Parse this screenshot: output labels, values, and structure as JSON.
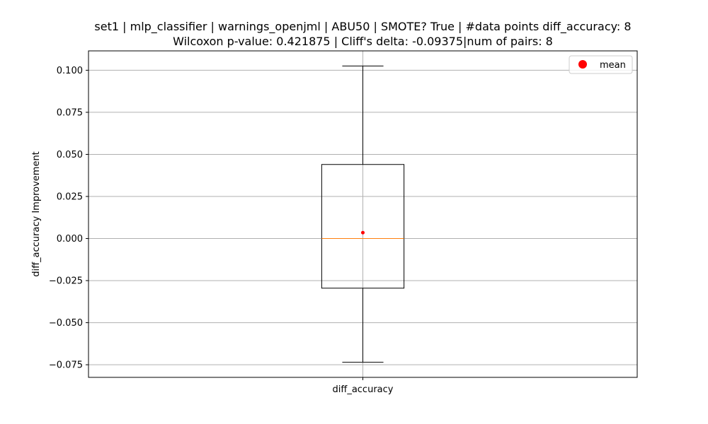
{
  "chart_data": {
    "type": "box",
    "title": [
      "set1 | mlp_classifier | warnings_openjml | ABU50 | SMOTE? True | #data points diff_accuracy: 8",
      "Wilcoxon p-value: 0.421875 | Cliff's delta: -0.09375|num of pairs: 8"
    ],
    "xlabel": "",
    "ylabel": "diff_accuracy Improvement",
    "ylim": [
      -0.0825,
      0.1115
    ],
    "yticks": [
      -0.075,
      -0.05,
      -0.025,
      0.0,
      0.025,
      0.05,
      0.075,
      0.1
    ],
    "ytick_labels": [
      "−0.075",
      "−0.050",
      "−0.025",
      "0.000",
      "0.025",
      "0.050",
      "0.075",
      "0.100"
    ],
    "categories": [
      "diff_accuracy"
    ],
    "boxes": [
      {
        "name": "diff_accuracy",
        "whisker_low": -0.0735,
        "q1": -0.0295,
        "median": 0.0,
        "q3": 0.044,
        "whisker_high": 0.1025,
        "mean": 0.0035
      }
    ],
    "legend": {
      "entries": [
        "mean"
      ],
      "position": "top-right"
    },
    "grid": true,
    "colors": {
      "median": "#ff7f0e",
      "mean": "#ff0000",
      "box": "#000000",
      "grid": "#b0b0b0"
    }
  }
}
